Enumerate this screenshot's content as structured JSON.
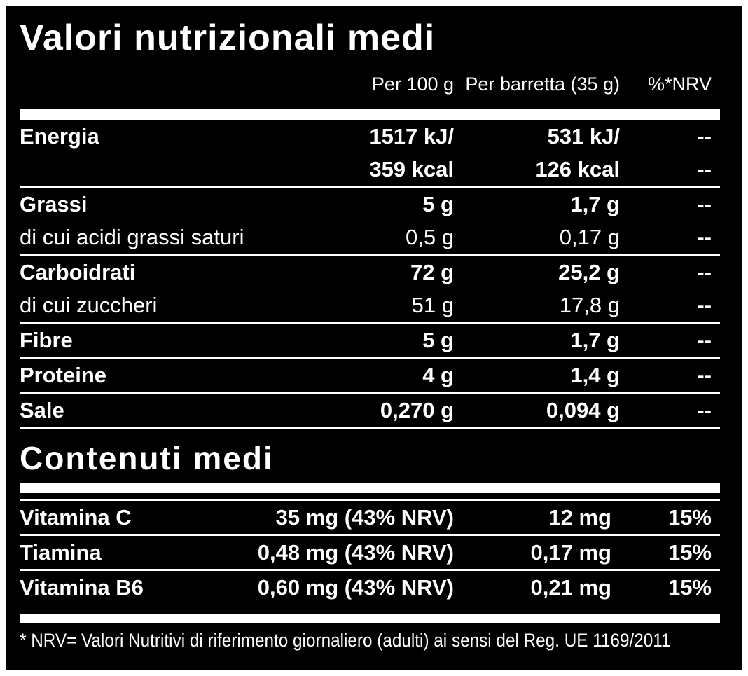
{
  "colors": {
    "panel_background": "#000000",
    "text": "#ffffff",
    "page_background": "#ffffff"
  },
  "title": "Valori nutrizionali medi",
  "table_headers": {
    "per_100g": "Per 100 g",
    "per_bar": "Per barretta (35 g)",
    "nrv": "%*NRV"
  },
  "nutrition_table": {
    "rows": [
      {
        "label": "Energia",
        "per_100g": "1517 kJ/",
        "per_bar": "531 kJ/",
        "nrv": "--"
      },
      {
        "label": "",
        "per_100g": "359 kcal",
        "per_bar": "126 kcal",
        "nrv": "--"
      },
      {
        "label": "Grassi",
        "per_100g": "5 g",
        "per_bar": "1,7 g",
        "nrv": "--"
      },
      {
        "label": "di cui acidi grassi saturi",
        "per_100g": "0,5 g",
        "per_bar": "0,17 g",
        "nrv": "--"
      },
      {
        "label": "Carboidrati",
        "per_100g": "72 g",
        "per_bar": "25,2 g",
        "nrv": "--"
      },
      {
        "label": "di cui zuccheri",
        "per_100g": "51 g",
        "per_bar": "17,8 g",
        "nrv": "--"
      },
      {
        "label": "Fibre",
        "per_100g": "5 g",
        "per_bar": "1,7 g",
        "nrv": "--"
      },
      {
        "label": "Proteine",
        "per_100g": "4 g",
        "per_bar": "1,4 g",
        "nrv": "--"
      },
      {
        "label": "Sale",
        "per_100g": "0,270 g",
        "per_bar": "0,094 g",
        "nrv": "--"
      }
    ]
  },
  "section_title": "Contenuti medi",
  "contents_table": {
    "rows": [
      {
        "label": "Vitamina C",
        "per_100g": "35 mg (43% NRV)",
        "per_bar": "12 mg",
        "nrv": "15%"
      },
      {
        "label": "Tiamina",
        "per_100g": "0,48 mg (43% NRV)",
        "per_bar": "0,17 mg",
        "nrv": "15%"
      },
      {
        "label": "Vitamina B6",
        "per_100g": "0,60 mg (43% NRV)",
        "per_bar": "0,21 mg",
        "nrv": "15%"
      }
    ]
  },
  "footnote": "* NRV= Valori Nutritivi di riferimento giornaliero (adulti) ai sensi del Reg. UE 1169/2011"
}
